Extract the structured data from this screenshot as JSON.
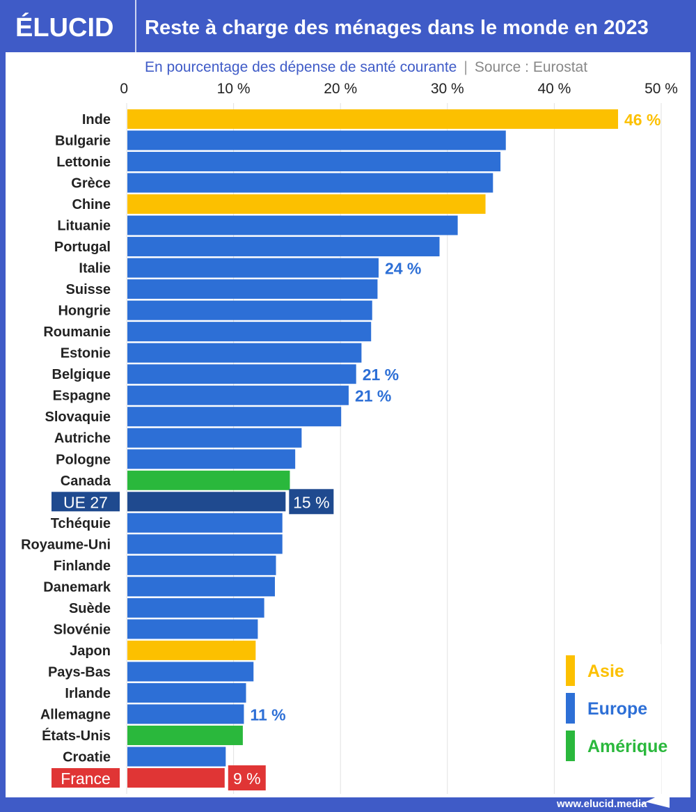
{
  "header": {
    "logo": "ÉLUCID",
    "title": "Reste à charge des ménages dans le monde en 2023"
  },
  "footer": {
    "url": "www.elucid.media"
  },
  "colors": {
    "frame": "#3f5bc7",
    "Asie": "#fcc000",
    "Europe": "#2d6fd6",
    "Amérique": "#2ab83c",
    "UE 27": "#1f4a8f",
    "France": "#e03535"
  },
  "chart_data": {
    "type": "bar",
    "orientation": "horizontal",
    "title": "Reste à charge des ménages dans le monde en 2023",
    "subtitle": "En pourcentage des dépense de santé courante",
    "source": "Source : Eurostat",
    "xlim": [
      0,
      50
    ],
    "xticks": [
      {
        "value": 0,
        "label": "0"
      },
      {
        "value": 10,
        "label": "10 %"
      },
      {
        "value": 20,
        "label": "20 %"
      },
      {
        "value": 30,
        "label": "30 %"
      },
      {
        "value": 40,
        "label": "40 %"
      },
      {
        "value": 50,
        "label": "50 %"
      }
    ],
    "grid": true,
    "legend": {
      "placement": "bottom-right",
      "entries": [
        "Asie",
        "Europe",
        "Amérique"
      ]
    },
    "bars": [
      {
        "category": "Inde",
        "value": 45.9,
        "group": "Asie",
        "label": "46 %"
      },
      {
        "category": "Bulgarie",
        "value": 35.4,
        "group": "Europe"
      },
      {
        "category": "Lettonie",
        "value": 34.9,
        "group": "Europe"
      },
      {
        "category": "Grèce",
        "value": 34.2,
        "group": "Europe"
      },
      {
        "category": "Chine",
        "value": 33.5,
        "group": "Asie"
      },
      {
        "category": "Lituanie",
        "value": 30.9,
        "group": "Europe"
      },
      {
        "category": "Portugal",
        "value": 29.2,
        "group": "Europe"
      },
      {
        "category": "Italie",
        "value": 23.5,
        "group": "Europe",
        "label": "24 %"
      },
      {
        "category": "Suisse",
        "value": 23.4,
        "group": "Europe"
      },
      {
        "category": "Hongrie",
        "value": 22.9,
        "group": "Europe"
      },
      {
        "category": "Roumanie",
        "value": 22.8,
        "group": "Europe"
      },
      {
        "category": "Estonie",
        "value": 21.9,
        "group": "Europe"
      },
      {
        "category": "Belgique",
        "value": 21.4,
        "group": "Europe",
        "label": "21 %"
      },
      {
        "category": "Espagne",
        "value": 20.7,
        "group": "Europe",
        "label": "21 %"
      },
      {
        "category": "Slovaquie",
        "value": 20.0,
        "group": "Europe"
      },
      {
        "category": "Autriche",
        "value": 16.3,
        "group": "Europe"
      },
      {
        "category": "Pologne",
        "value": 15.7,
        "group": "Europe"
      },
      {
        "category": "Canada",
        "value": 15.2,
        "group": "Amérique"
      },
      {
        "category": "UE 27",
        "value": 14.8,
        "group": "UE 27",
        "label": "15 %",
        "highlight": true
      },
      {
        "category": "Tchéquie",
        "value": 14.5,
        "group": "Europe"
      },
      {
        "category": "Royaume-Uni",
        "value": 14.5,
        "group": "Europe"
      },
      {
        "category": "Finlande",
        "value": 13.9,
        "group": "Europe"
      },
      {
        "category": "Danemark",
        "value": 13.8,
        "group": "Europe"
      },
      {
        "category": "Suède",
        "value": 12.8,
        "group": "Europe"
      },
      {
        "category": "Slovénie",
        "value": 12.2,
        "group": "Europe"
      },
      {
        "category": "Japon",
        "value": 12.0,
        "group": "Asie"
      },
      {
        "category": "Pays-Bas",
        "value": 11.8,
        "group": "Europe"
      },
      {
        "category": "Irlande",
        "value": 11.1,
        "group": "Europe"
      },
      {
        "category": "Allemagne",
        "value": 10.9,
        "group": "Europe",
        "label": "11 %"
      },
      {
        "category": "États-Unis",
        "value": 10.8,
        "group": "Amérique"
      },
      {
        "category": "Croatie",
        "value": 9.2,
        "group": "Europe"
      },
      {
        "category": "France",
        "value": 9.1,
        "group": "France",
        "label": "9 %",
        "highlight": true
      }
    ]
  }
}
